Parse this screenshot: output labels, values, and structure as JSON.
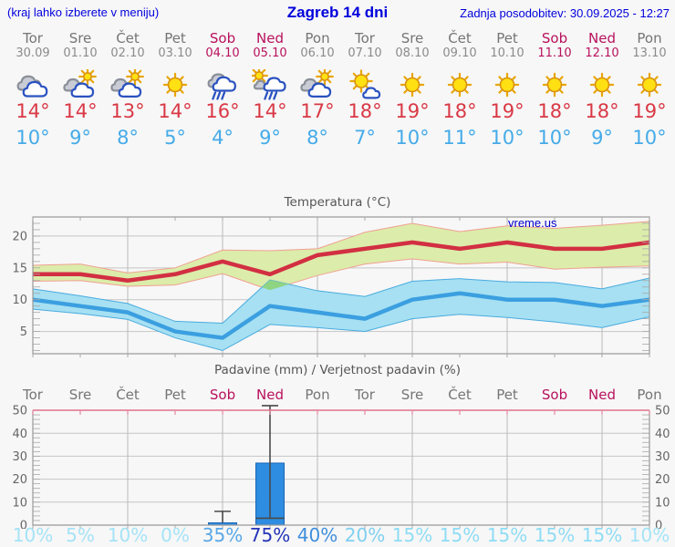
{
  "header": {
    "left_note": "(kraj lahko izberete v meniju)",
    "title": "Zagreb 14 dni",
    "updated": "Zadnja posodobitev: 30.09.2025 - 12:27"
  },
  "watermark": "vreme.us",
  "deg_symbol": "°",
  "colors": {
    "accent_blue": "#0000dd",
    "weekday": "#757575",
    "weekend": "#b8115c",
    "date_gray": "#8b8b8b",
    "tmax_text": "#d93845",
    "tmin_text": "#45abe8",
    "frame": "#999999",
    "grid": "#c6c6c6",
    "minor_tick": "#a8a8a8",
    "tick_label": "#666666",
    "max_band": "#dcecaa",
    "max_band_edge": "#f0a092",
    "max_line": "#d22f42",
    "min_band": "#a6e0f2",
    "min_band_edge": "#49abdf",
    "min_line": "#3b9fe0",
    "overlap_band": "#8fd483",
    "precip_bar": "#2e8de0",
    "precip_bar_edge": "#1a66b8",
    "whisker": "#4a4a4a",
    "precip_top_border": "#e0708c",
    "precip_day_tick": "#e888a0"
  },
  "days": [
    {
      "name": "Tor",
      "date": "30.09",
      "weekend": false,
      "icon": "cloudy",
      "tmax": 14,
      "tmin": 10,
      "pop": "10%",
      "pop_color": "#a5e3f7"
    },
    {
      "name": "Sre",
      "date": "01.10",
      "weekend": false,
      "icon": "partly",
      "tmax": 14,
      "tmin": 9,
      "pop": "5%",
      "pop_color": "#a5e3f7"
    },
    {
      "name": "Čet",
      "date": "02.10",
      "weekend": false,
      "icon": "partly",
      "tmax": 13,
      "tmin": 8,
      "pop": "10%",
      "pop_color": "#a5e3f7"
    },
    {
      "name": "Pet",
      "date": "03.10",
      "weekend": false,
      "icon": "sunny",
      "tmax": 14,
      "tmin": 5,
      "pop": "0%",
      "pop_color": "#a5e3f7"
    },
    {
      "name": "Sob",
      "date": "04.10",
      "weekend": true,
      "icon": "rain",
      "tmax": 16,
      "tmin": 4,
      "pop": "35%",
      "pop_color": "#57a7e7"
    },
    {
      "name": "Ned",
      "date": "05.10",
      "weekend": true,
      "icon": "sun-rain",
      "tmax": 14,
      "tmin": 9,
      "pop": "75%",
      "pop_color": "#2433b8"
    },
    {
      "name": "Pon",
      "date": "06.10",
      "weekend": false,
      "icon": "partly",
      "tmax": 17,
      "tmin": 8,
      "pop": "40%",
      "pop_color": "#3f8edc"
    },
    {
      "name": "Tor",
      "date": "07.10",
      "weekend": false,
      "icon": "sun-cloud",
      "tmax": 18,
      "tmin": 7,
      "pop": "20%",
      "pop_color": "#7fd0f0"
    },
    {
      "name": "Sre",
      "date": "08.10",
      "weekend": false,
      "icon": "sunny",
      "tmax": 19,
      "tmin": 10,
      "pop": "15%",
      "pop_color": "#8edcf5"
    },
    {
      "name": "Čet",
      "date": "09.10",
      "weekend": false,
      "icon": "sunny",
      "tmax": 18,
      "tmin": 11,
      "pop": "15%",
      "pop_color": "#8edcf5"
    },
    {
      "name": "Pet",
      "date": "10.10",
      "weekend": false,
      "icon": "sunny",
      "tmax": 19,
      "tmin": 10,
      "pop": "15%",
      "pop_color": "#8edcf5"
    },
    {
      "name": "Sob",
      "date": "11.10",
      "weekend": true,
      "icon": "sunny",
      "tmax": 18,
      "tmin": 10,
      "pop": "15%",
      "pop_color": "#8edcf5"
    },
    {
      "name": "Ned",
      "date": "12.10",
      "weekend": true,
      "icon": "sunny",
      "tmax": 18,
      "tmin": 9,
      "pop": "15%",
      "pop_color": "#8edcf5"
    },
    {
      "name": "Pon",
      "date": "13.10",
      "weekend": false,
      "icon": "sunny",
      "tmax": 19,
      "tmin": 10,
      "pop": "10%",
      "pop_color": "#a5e3f7"
    }
  ],
  "chart_data": [
    {
      "type": "line",
      "title": "Temperatura (°C)",
      "categories": [
        "Tor 30.09",
        "Sre 01.10",
        "Čet 02.10",
        "Pet 03.10",
        "Sob 04.10",
        "Ned 05.10",
        "Pon 06.10",
        "Tor 07.10",
        "Sre 08.10",
        "Čet 09.10",
        "Pet 10.10",
        "Sob 11.10",
        "Ned 12.10",
        "Pon 13.10"
      ],
      "ylim": [
        1.5,
        23
      ],
      "yticks": [
        5,
        10,
        15,
        20
      ],
      "grid": true,
      "series": [
        {
          "name": "tmax",
          "values": [
            14,
            14,
            13,
            14,
            16,
            14,
            17,
            18,
            19,
            18,
            19,
            18,
            18,
            19
          ]
        },
        {
          "name": "tmax_band_high",
          "values": [
            15.4,
            15.6,
            14.2,
            15.0,
            17.8,
            17.7,
            18.0,
            20.6,
            22.0,
            20.7,
            21.6,
            21.2,
            21.7,
            22.3
          ]
        },
        {
          "name": "tmax_band_low",
          "values": [
            12.9,
            13.0,
            12.1,
            12.3,
            14.1,
            11.5,
            13.8,
            15.6,
            16.4,
            15.6,
            15.9,
            14.8,
            15.1,
            15.3
          ]
        },
        {
          "name": "tmin",
          "values": [
            10,
            9,
            8,
            5,
            4,
            9,
            8,
            7,
            10,
            11,
            10,
            10,
            9,
            10
          ]
        },
        {
          "name": "tmin_band_high",
          "values": [
            11.7,
            10.6,
            9.4,
            6.6,
            6.3,
            13.1,
            11.4,
            10.5,
            12.9,
            13.3,
            12.8,
            12.7,
            11.7,
            13.4
          ]
        },
        {
          "name": "tmin_band_low",
          "values": [
            8.5,
            7.8,
            6.9,
            4.0,
            2.0,
            6.1,
            5.6,
            5.0,
            7.0,
            7.7,
            7.2,
            6.5,
            5.6,
            7.3
          ]
        }
      ]
    },
    {
      "type": "bar",
      "title": "Padavine (mm) / Verjetnost padavin (%)",
      "categories": [
        "Tor",
        "Sre",
        "Čet",
        "Pet",
        "Sob",
        "Ned",
        "Pon",
        "Tor",
        "Sre",
        "Čet",
        "Pet",
        "Sob",
        "Ned",
        "Pon"
      ],
      "ylim": [
        0,
        50
      ],
      "yticks": [
        0,
        10,
        20,
        30,
        40,
        50
      ],
      "grid": true,
      "precip_mm": [
        0,
        0,
        0,
        0,
        1,
        27,
        0,
        0,
        0,
        0,
        0,
        0,
        0,
        0
      ],
      "whisker_low": [
        null,
        null,
        null,
        null,
        1,
        3,
        null,
        null,
        null,
        null,
        null,
        null,
        null,
        null
      ],
      "whisker_high": [
        null,
        null,
        null,
        null,
        6,
        52,
        null,
        null,
        null,
        null,
        null,
        null,
        null,
        null
      ],
      "probability_pct": [
        10,
        5,
        10,
        0,
        35,
        75,
        40,
        20,
        15,
        15,
        15,
        15,
        15,
        10
      ]
    }
  ]
}
